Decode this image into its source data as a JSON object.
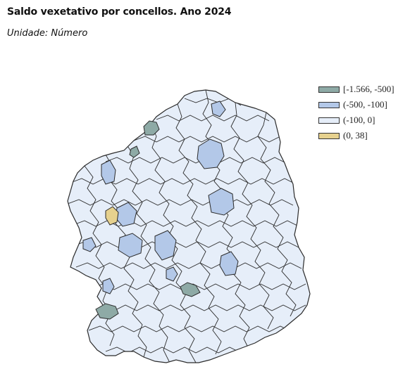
{
  "title": "Saldo vexetativo por concellos. Ano 2024",
  "subtitle": "Unidade: Número",
  "legend": [
    {
      "label": "[-1.566, -500]",
      "color": "#8eaaa6"
    },
    {
      "label": "(-500, -100]",
      "color": "#b3c8e8"
    },
    {
      "label": "(-100, 0]",
      "color": "#e6eef9"
    },
    {
      "label": "(0, 38]",
      "color": "#e6d18e"
    }
  ],
  "map": {
    "region": "Galicia",
    "border_color": "#2b2b2b",
    "highlighted_units": [
      {
        "class": "[-1.566, -500]",
        "color": "#8eaaa6"
      },
      {
        "class": "[-1.566, -500]",
        "color": "#8eaaa6"
      },
      {
        "class": "[-1.566, -500]",
        "color": "#8eaaa6"
      },
      {
        "class": "[-1.566, -500]",
        "color": "#8eaaa6"
      },
      {
        "class": "(-500, -100]",
        "color": "#b3c8e8"
      },
      {
        "class": "(-500, -100]",
        "color": "#b3c8e8"
      },
      {
        "class": "(-500, -100]",
        "color": "#b3c8e8"
      },
      {
        "class": "(-500, -100]",
        "color": "#b3c8e8"
      },
      {
        "class": "(-500, -100]",
        "color": "#b3c8e8"
      },
      {
        "class": "(-500, -100]",
        "color": "#b3c8e8"
      },
      {
        "class": "(-500, -100]",
        "color": "#b3c8e8"
      },
      {
        "class": "(-500, -100]",
        "color": "#b3c8e8"
      },
      {
        "class": "(-500, -100]",
        "color": "#b3c8e8"
      },
      {
        "class": "(-500, -100]",
        "color": "#b3c8e8"
      },
      {
        "class": "(-500, -100]",
        "color": "#b3c8e8"
      },
      {
        "class": "(0, 38]",
        "color": "#e6d18e"
      }
    ]
  }
}
